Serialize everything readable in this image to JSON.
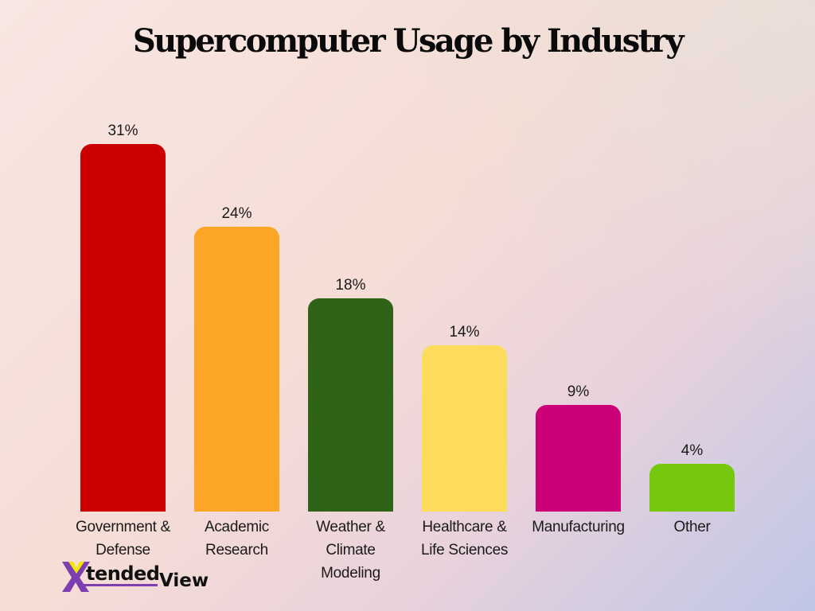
{
  "title": "Supercomputer Usage by Industry",
  "brand": {
    "logo_mark": "X",
    "logo_text": "tended",
    "logo_text2": "View"
  },
  "chart_data": {
    "type": "bar",
    "title": "Supercomputer Usage by Industry",
    "xlabel": "",
    "ylabel": "",
    "categories": [
      "Government & Defense",
      "Academic Research",
      "Weather & Climate Modeling",
      "Healthcare & Life Sciences",
      "Manufacturing",
      "Other"
    ],
    "values": [
      31,
      24,
      18,
      14,
      9,
      4
    ],
    "value_labels": [
      "31%",
      "24%",
      "18%",
      "14%",
      "9%",
      "4%"
    ],
    "colors": [
      "#cc0000",
      "#fca526",
      "#2e6318",
      "#fddc5c",
      "#cc0077",
      "#76c80f"
    ],
    "grid": false,
    "legend": "none",
    "ylim": [
      0,
      31
    ]
  },
  "bars": [
    {
      "label_lines": [
        "Government &",
        "Defense"
      ],
      "value": "31%",
      "color": "#cc0000"
    },
    {
      "label_lines": [
        "Academic",
        "Research"
      ],
      "value": "24%",
      "color": "#fca526"
    },
    {
      "label_lines": [
        "Weather &",
        "Climate",
        "Modeling"
      ],
      "value": "18%",
      "color": "#2e6318"
    },
    {
      "label_lines": [
        "Healthcare &",
        "Life Sciences"
      ],
      "value": "14%",
      "color": "#fddc5c"
    },
    {
      "label_lines": [
        "Manufacturing"
      ],
      "value": "9%",
      "color": "#cc0077"
    },
    {
      "label_lines": [
        "Other"
      ],
      "value": "4%",
      "color": "#76c80f"
    }
  ]
}
